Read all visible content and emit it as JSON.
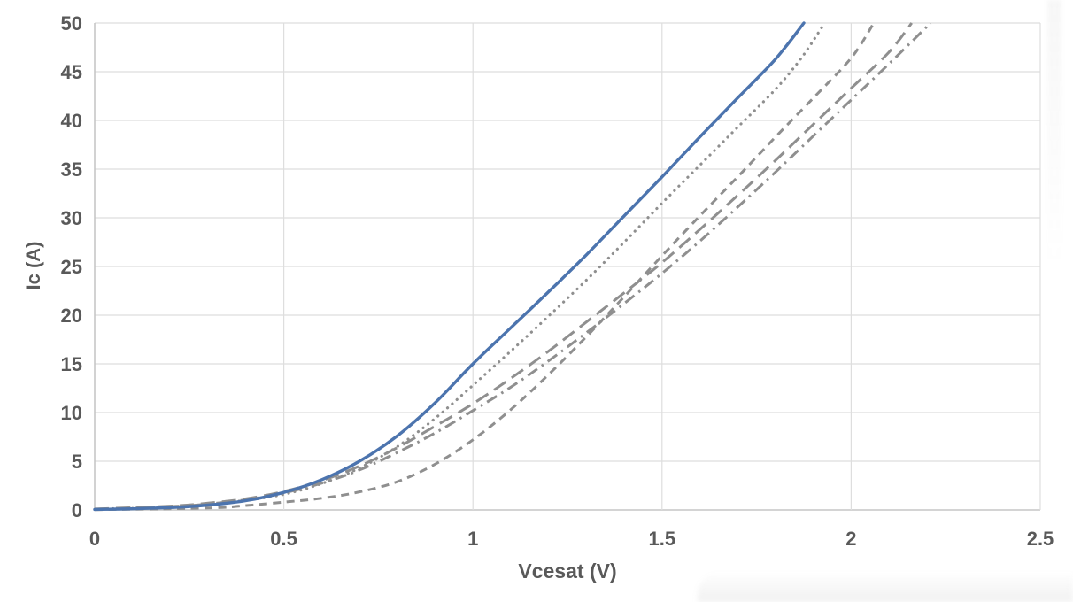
{
  "chart_data": {
    "type": "line",
    "title": "",
    "xlabel": "Vcesat (V)",
    "ylabel": "Ic (A)",
    "xlim": [
      0,
      2.5
    ],
    "ylim": [
      0,
      50
    ],
    "x_ticks": [
      0,
      0.5,
      1,
      1.5,
      2,
      2.5
    ],
    "x_tick_labels": [
      "0",
      "0.5",
      "1",
      "1.5",
      "2",
      "2.5"
    ],
    "y_ticks": [
      0,
      5,
      10,
      15,
      20,
      25,
      30,
      35,
      40,
      45,
      50
    ],
    "y_tick_labels": [
      "0",
      "5",
      "10",
      "15",
      "20",
      "25",
      "30",
      "35",
      "40",
      "45",
      "50"
    ],
    "grid": "both",
    "legend": "none",
    "colors": {
      "blue_series": "#4C74AE",
      "gray_series": "#8F8F8F",
      "gridline": "#DEDEDE",
      "axis_line": "#C6C6C6",
      "label_text": "#595959",
      "background": "#FFFFFF"
    },
    "series": [
      {
        "name": "solid-blue",
        "style": "solid",
        "color": "#4C74AE",
        "points": [
          [
            0,
            0.05
          ],
          [
            0.1,
            0.12
          ],
          [
            0.2,
            0.25
          ],
          [
            0.3,
            0.5
          ],
          [
            0.4,
            0.95
          ],
          [
            0.5,
            1.8
          ],
          [
            0.6,
            3.1
          ],
          [
            0.7,
            5.0
          ],
          [
            0.8,
            7.6
          ],
          [
            0.9,
            11.0
          ],
          [
            1.0,
            15.0
          ],
          [
            1.1,
            18.7
          ],
          [
            1.2,
            22.4
          ],
          [
            1.3,
            26.2
          ],
          [
            1.4,
            30.2
          ],
          [
            1.5,
            34.2
          ],
          [
            1.6,
            38.3
          ],
          [
            1.7,
            42.3
          ],
          [
            1.8,
            46.3
          ],
          [
            1.875,
            50
          ]
        ]
      },
      {
        "name": "dotted-gray",
        "style": "dot",
        "color": "#8F8F8F",
        "points": [
          [
            0,
            0.05
          ],
          [
            0.2,
            0.3
          ],
          [
            0.3,
            0.55
          ],
          [
            0.4,
            1.0
          ],
          [
            0.5,
            1.6
          ],
          [
            0.6,
            2.7
          ],
          [
            0.7,
            4.3
          ],
          [
            0.8,
            6.5
          ],
          [
            0.9,
            9.4
          ],
          [
            1.0,
            12.8
          ],
          [
            1.1,
            16.3
          ],
          [
            1.2,
            19.9
          ],
          [
            1.3,
            23.6
          ],
          [
            1.4,
            27.5
          ],
          [
            1.5,
            31.5
          ],
          [
            1.6,
            35.4
          ],
          [
            1.7,
            39.3
          ],
          [
            1.8,
            43.2
          ],
          [
            1.87,
            46.5
          ],
          [
            1.93,
            50
          ]
        ]
      },
      {
        "name": "short-dash-gray",
        "style": "dash",
        "color": "#8F8F8F",
        "points": [
          [
            0,
            0.02
          ],
          [
            0.3,
            0.2
          ],
          [
            0.4,
            0.45
          ],
          [
            0.5,
            0.8
          ],
          [
            0.6,
            1.2
          ],
          [
            0.7,
            1.85
          ],
          [
            0.8,
            2.9
          ],
          [
            0.9,
            4.7
          ],
          [
            1.0,
            7.2
          ],
          [
            1.1,
            10.3
          ],
          [
            1.2,
            13.9
          ],
          [
            1.3,
            17.8
          ],
          [
            1.4,
            21.9
          ],
          [
            1.5,
            26.1
          ],
          [
            1.6,
            30.2
          ],
          [
            1.7,
            34.2
          ],
          [
            1.8,
            38.3
          ],
          [
            1.9,
            42.3
          ],
          [
            2.0,
            46.4
          ],
          [
            2.06,
            50
          ]
        ]
      },
      {
        "name": "long-dash-gray",
        "style": "long-dash",
        "color": "#8F8F8F",
        "points": [
          [
            0,
            0.1
          ],
          [
            0.2,
            0.4
          ],
          [
            0.3,
            0.7
          ],
          [
            0.4,
            1.15
          ],
          [
            0.5,
            1.9
          ],
          [
            0.6,
            3.0
          ],
          [
            0.7,
            4.5
          ],
          [
            0.8,
            6.4
          ],
          [
            0.9,
            8.6
          ],
          [
            1.0,
            10.9
          ],
          [
            1.1,
            13.5
          ],
          [
            1.2,
            16.3
          ],
          [
            1.3,
            19.3
          ],
          [
            1.4,
            22.3
          ],
          [
            1.5,
            25.4
          ],
          [
            1.6,
            28.8
          ],
          [
            1.7,
            32.3
          ],
          [
            1.8,
            35.9
          ],
          [
            1.9,
            39.6
          ],
          [
            2.0,
            43.3
          ],
          [
            2.1,
            47.0
          ],
          [
            2.16,
            50
          ]
        ]
      },
      {
        "name": "dash-dot-gray",
        "style": "dash-dot",
        "color": "#8F8F8F",
        "points": [
          [
            0,
            0.08
          ],
          [
            0.2,
            0.35
          ],
          [
            0.3,
            0.62
          ],
          [
            0.4,
            1.05
          ],
          [
            0.5,
            1.75
          ],
          [
            0.6,
            2.75
          ],
          [
            0.7,
            4.1
          ],
          [
            0.8,
            5.9
          ],
          [
            0.9,
            7.9
          ],
          [
            1.0,
            10.2
          ],
          [
            1.1,
            12.6
          ],
          [
            1.2,
            15.3
          ],
          [
            1.3,
            18.2
          ],
          [
            1.4,
            21.2
          ],
          [
            1.5,
            24.3
          ],
          [
            1.6,
            27.6
          ],
          [
            1.7,
            31.1
          ],
          [
            1.8,
            34.7
          ],
          [
            1.9,
            38.4
          ],
          [
            2.0,
            42.1
          ],
          [
            2.1,
            45.8
          ],
          [
            2.21,
            50
          ]
        ]
      }
    ]
  }
}
